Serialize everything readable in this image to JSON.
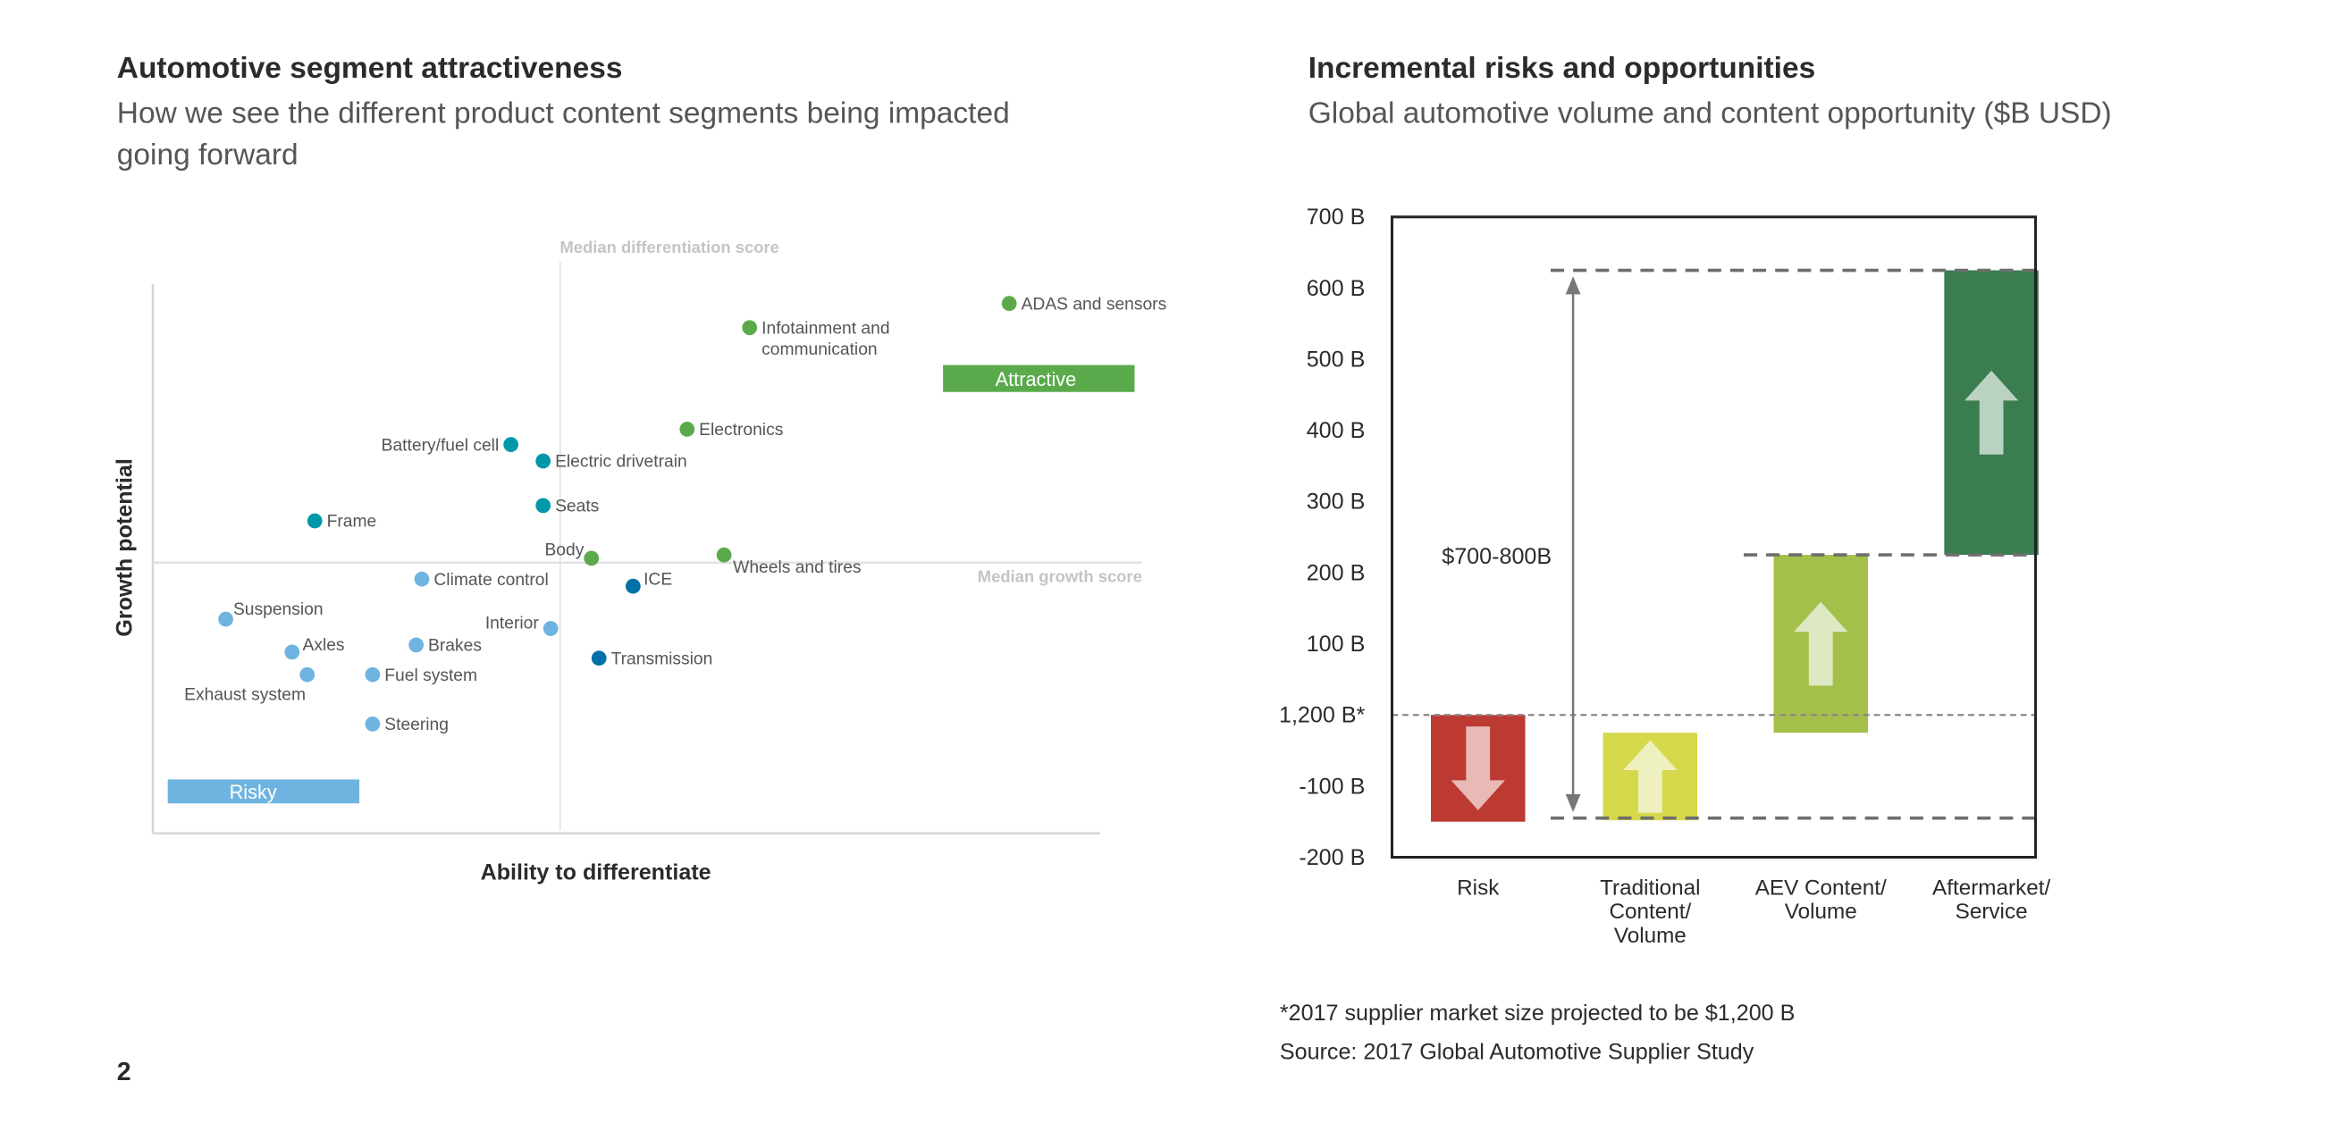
{
  "page_number": "2",
  "left": {
    "title": "Automotive segment attractiveness",
    "subtitle_line1": "How we see the different product content segments being impacted",
    "subtitle_line2": "going forward"
  },
  "right": {
    "title": "Incremental risks and opportunities",
    "subtitle": "Global automotive volume and content opportunity ($B USD)"
  },
  "footnotes": {
    "note": "*2017 supplier market size projected to be $1,200 B",
    "source": "Source: 2017 Global Automotive Supplier Study"
  },
  "colors": {
    "attractive_green": "#5aaa4c",
    "teal": "#0097a9",
    "light_blue": "#6fb4e0",
    "dark_blue": "#0070a8",
    "risk_red": "#bd3a33",
    "traditional_yellow": "#d5d84a",
    "aev_green": "#a5c04a",
    "aftermarket_green": "#3a7d4e"
  },
  "chart_data": [
    {
      "type": "scatter",
      "title": "Automotive segment attractiveness",
      "xlabel": "Ability to differentiate",
      "ylabel": "Growth potential",
      "xlim": [
        0,
        100
      ],
      "ylim": [
        0,
        100
      ],
      "grid": false,
      "median_x": 43.0,
      "median_y": 49.3,
      "median_x_label": "Median differentiation score",
      "median_y_label": "Median growth score",
      "zones": [
        {
          "label": "Attractive",
          "color": "#5aaa4c"
        },
        {
          "label": "Risky",
          "color": "#6fb4e0"
        }
      ],
      "points": [
        {
          "label": "ADAS and sensors",
          "x": 90.4,
          "y": 96.5,
          "color": "#5aaa4c"
        },
        {
          "label": "Infotainment and",
          "label2": "communication",
          "x": 63.0,
          "y": 92.1,
          "color": "#5aaa4c"
        },
        {
          "label": "Electronics",
          "x": 56.4,
          "y": 73.6,
          "color": "#5aaa4c"
        },
        {
          "label": "Battery/fuel cell",
          "x": 37.8,
          "y": 70.8,
          "color": "#0097a9"
        },
        {
          "label": "Electric drivetrain",
          "x": 41.2,
          "y": 67.8,
          "color": "#0097a9"
        },
        {
          "label": "Seats",
          "x": 41.2,
          "y": 59.7,
          "color": "#0097a9"
        },
        {
          "label": "Frame",
          "x": 17.1,
          "y": 56.9,
          "color": "#0097a9"
        },
        {
          "label": "Body",
          "x": 46.3,
          "y": 50.1,
          "color": "#5aaa4c"
        },
        {
          "label": "Wheels and tires",
          "x": 60.3,
          "y": 50.7,
          "color": "#5aaa4c"
        },
        {
          "label": "Climate control",
          "x": 28.4,
          "y": 46.3,
          "color": "#6fb4e0"
        },
        {
          "label": "ICE",
          "x": 50.7,
          "y": 45.0,
          "color": "#0070a8"
        },
        {
          "label": "Suspension",
          "x": 7.7,
          "y": 39.0,
          "color": "#6fb4e0"
        },
        {
          "label": "Interior",
          "x": 42.0,
          "y": 37.3,
          "color": "#6fb4e0"
        },
        {
          "label": "Axles",
          "x": 14.7,
          "y": 33.0,
          "color": "#6fb4e0"
        },
        {
          "label": "Brakes",
          "x": 27.8,
          "y": 34.3,
          "color": "#6fb4e0"
        },
        {
          "label": "Transmission",
          "x": 47.1,
          "y": 31.9,
          "color": "#0070a8"
        },
        {
          "label": "Exhaust system",
          "x": 16.3,
          "y": 28.9,
          "color": "#6fb4e0"
        },
        {
          "label": "Fuel system",
          "x": 23.2,
          "y": 28.9,
          "color": "#6fb4e0"
        },
        {
          "label": "Steering",
          "x": 23.2,
          "y": 19.9,
          "color": "#6fb4e0"
        }
      ]
    },
    {
      "type": "bar",
      "subtype": "waterfall",
      "title": "Incremental risks and opportunities",
      "subtitle": "Global automotive volume and content opportunity ($B USD)",
      "ylim": [
        -200,
        700
      ],
      "yticks": [
        {
          "value": 700,
          "label": "700 B"
        },
        {
          "value": 600,
          "label": "600 B"
        },
        {
          "value": 500,
          "label": "500 B"
        },
        {
          "value": 400,
          "label": "400 B"
        },
        {
          "value": 300,
          "label": "300 B"
        },
        {
          "value": 200,
          "label": "200 B"
        },
        {
          "value": 100,
          "label": "100 B"
        },
        {
          "value": 0,
          "label": "1,200 B*"
        },
        {
          "value": -100,
          "label": "-100 B"
        },
        {
          "value": -200,
          "label": "-200 B"
        }
      ],
      "categories": [
        "Risk",
        "Traditional Content/ Volume",
        "AEV Content/ Volume",
        "Aftermarket/ Service"
      ],
      "category_lines": [
        [
          "Risk"
        ],
        [
          "Traditional",
          "Content/",
          "Volume"
        ],
        [
          "AEV Content/",
          "Volume"
        ],
        [
          "Aftermarket/",
          "Service"
        ]
      ],
      "bars": [
        {
          "start": 0,
          "end": -150,
          "direction": "down",
          "color": "#bd3a33",
          "arrow_color": "#e8b9b5"
        },
        {
          "start": -148,
          "end": -25,
          "direction": "up",
          "color": "#d5d84a",
          "arrow_color": "#eef0c0"
        },
        {
          "start": -25,
          "end": 225,
          "direction": "up",
          "color": "#a5c04a",
          "arrow_color": "#dde9c3"
        },
        {
          "start": 225,
          "end": 625,
          "direction": "up",
          "color": "#3a7d4e",
          "arrow_color": "#b9d2c1"
        }
      ],
      "reference_lines": [
        625,
        225,
        0,
        -145
      ],
      "range_annotation": {
        "label": "$700-800B",
        "from": -145,
        "to": 625
      }
    }
  ]
}
